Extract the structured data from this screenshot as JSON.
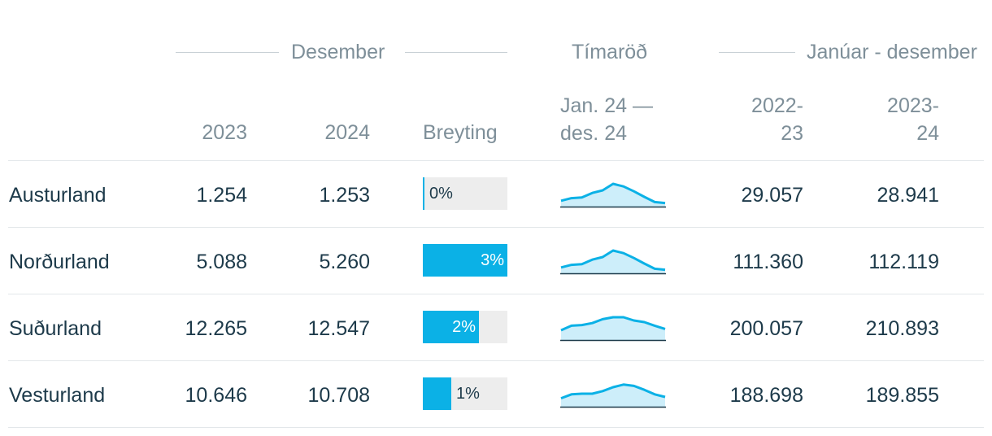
{
  "header": {
    "group_desember": "Desember",
    "group_timarod": "Tímaröð",
    "group_januar": "Janúar - desember",
    "col_2023": "2023",
    "col_2024": "2024",
    "col_breyting": "Breyting",
    "col_timarod_line1": "Jan. 24 —",
    "col_timarod_line2": "des. 24",
    "col_2022_23_line1": "2022-",
    "col_2022_23_line2": "23",
    "col_2023_24_line1": "2023-",
    "col_2023_24_line2": "24"
  },
  "rows": [
    {
      "region": "Austurland",
      "v2023": "1.254",
      "v2024": "1.253",
      "change_label": "0%",
      "change_pct": 0,
      "ytd_2022_23": "29.057",
      "ytd_2023_24": "28.941",
      "spark": [
        18,
        26,
        28,
        42,
        50,
        70,
        62,
        47,
        30,
        14,
        11
      ]
    },
    {
      "region": "Norðurland",
      "v2023": "5.088",
      "v2024": "5.260",
      "change_label": "3%",
      "change_pct": 3,
      "ytd_2022_23": "111.360",
      "ytd_2023_24": "112.119",
      "spark": [
        18,
        26,
        28,
        42,
        50,
        70,
        62,
        47,
        30,
        14,
        11
      ]
    },
    {
      "region": "Suðurland",
      "v2023": "12.265",
      "v2024": "12.547",
      "change_label": "2%",
      "change_pct": 2,
      "ytd_2022_23": "200.057",
      "ytd_2023_24": "210.893",
      "spark": [
        30,
        44,
        46,
        52,
        64,
        70,
        70,
        60,
        55,
        44,
        34
      ]
    },
    {
      "region": "Vesturland",
      "v2023": "10.646",
      "v2024": "10.708",
      "change_label": "1%",
      "change_pct": 1,
      "ytd_2022_23": "188.698",
      "ytd_2023_24": "189.855",
      "spark": [
        26,
        38,
        40,
        40,
        48,
        60,
        68,
        64,
        52,
        38,
        30
      ]
    }
  ],
  "colors": {
    "accent": "#0bb1e6",
    "spark_fill": "#cdeefa",
    "text": "#1d3a4a",
    "muted": "#7e8f99"
  }
}
